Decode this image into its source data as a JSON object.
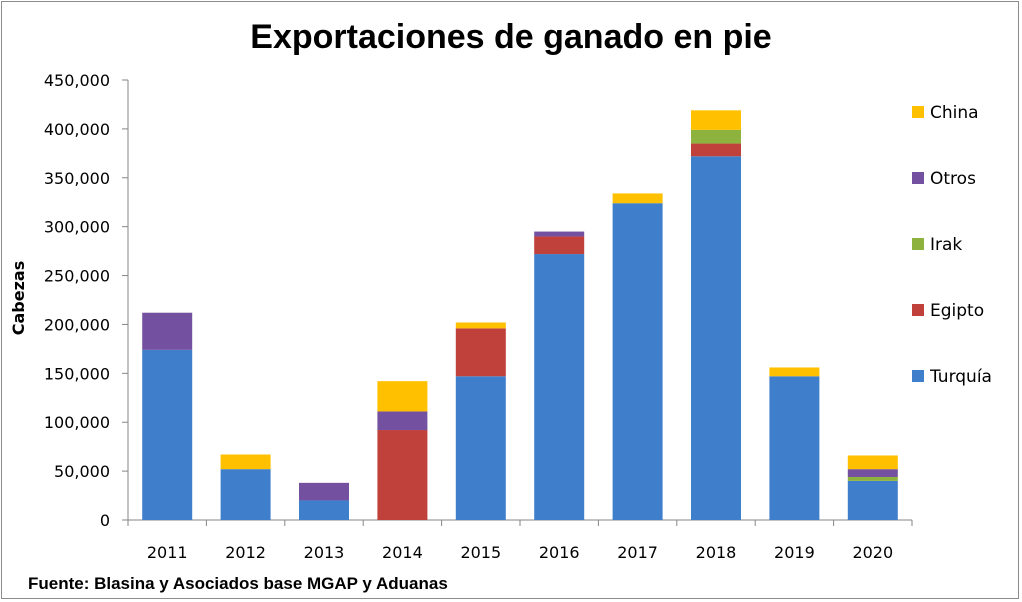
{
  "chart_data": {
    "type": "bar",
    "stacked": true,
    "title": "Exportaciones de ganado en pie",
    "ylabel": "Cabezas",
    "xlabel": "",
    "source": "Fuente: Blasina y Asociados base MGAP y Aduanas",
    "categories": [
      "2011",
      "2012",
      "2013",
      "2014",
      "2015",
      "2016",
      "2017",
      "2018",
      "2019",
      "2020"
    ],
    "ylim": [
      0,
      450000
    ],
    "yticks": [
      0,
      50000,
      100000,
      150000,
      200000,
      250000,
      300000,
      350000,
      400000,
      450000
    ],
    "ytick_labels": [
      "0",
      "50,000",
      "100,000",
      "150,000",
      "200,000",
      "250,000",
      "300,000",
      "350,000",
      "400,000",
      "450,000"
    ],
    "grid": false,
    "legend_position": "right",
    "series": [
      {
        "name": "Turquía",
        "color": "#3f7ecb",
        "values": [
          174000,
          52000,
          20000,
          0,
          147000,
          272000,
          324000,
          372000,
          147000,
          40000
        ]
      },
      {
        "name": "Egipto",
        "color": "#c0413b",
        "values": [
          0,
          0,
          0,
          92000,
          49000,
          18000,
          0,
          13000,
          0,
          0
        ]
      },
      {
        "name": "Irak",
        "color": "#8db33e",
        "values": [
          0,
          0,
          0,
          0,
          0,
          0,
          0,
          14000,
          0,
          4000
        ]
      },
      {
        "name": "Otros",
        "color": "#7451a0",
        "values": [
          38000,
          0,
          18000,
          19000,
          0,
          5000,
          0,
          0,
          0,
          8000
        ]
      },
      {
        "name": "China",
        "color": "#ffc000",
        "values": [
          0,
          15000,
          0,
          31000,
          6000,
          0,
          10000,
          20000,
          9000,
          14000
        ]
      }
    ]
  }
}
